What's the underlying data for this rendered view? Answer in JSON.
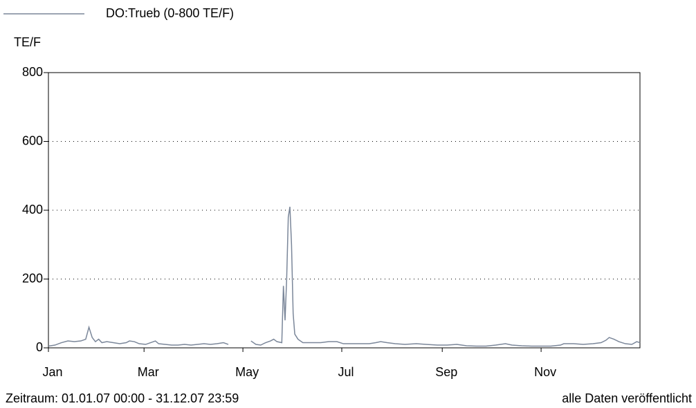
{
  "chart_data": {
    "type": "line",
    "legend_label": "DO:Trueb (0-800 TE/F)",
    "ylabel": "TE/F",
    "footer_left": "Zeitraum: 01.01.07 00:00 - 31.12.07 23:59",
    "footer_right": "alle Daten veröffentlicht",
    "xlim": [
      0,
      365
    ],
    "xticks": [
      {
        "value": 0,
        "label": "Jan"
      },
      {
        "value": 59,
        "label": "Mar"
      },
      {
        "value": 120,
        "label": "May"
      },
      {
        "value": 181,
        "label": "Jul"
      },
      {
        "value": 243,
        "label": "Sep"
      },
      {
        "value": 304,
        "label": "Nov"
      }
    ],
    "ylim": [
      0,
      800
    ],
    "yticks": [
      0,
      200,
      400,
      600,
      800
    ],
    "grid": true,
    "x": [
      0,
      4,
      8,
      12,
      16,
      20,
      23,
      25,
      27,
      29,
      31,
      33,
      36,
      40,
      44,
      48,
      50,
      53,
      56,
      60,
      63,
      66,
      68,
      72,
      76,
      80,
      84,
      88,
      92,
      96,
      100,
      104,
      108,
      111,
      113,
      125,
      128,
      131,
      134,
      137,
      139,
      141,
      144,
      145,
      146,
      147,
      148,
      149,
      150,
      151,
      152,
      154,
      157,
      162,
      168,
      173,
      178,
      182,
      190,
      198,
      202,
      205,
      209,
      214,
      220,
      227,
      233,
      240,
      246,
      252,
      258,
      264,
      270,
      276,
      282,
      286,
      292,
      298,
      304,
      310,
      316,
      318,
      324,
      330,
      336,
      341,
      344,
      346,
      349,
      352,
      356,
      360,
      363,
      365
    ],
    "series": [
      {
        "name": "DO:Trueb (0-800 TE/F)",
        "color": "#7a8699",
        "values": [
          5,
          8,
          15,
          20,
          18,
          20,
          25,
          60,
          30,
          18,
          25,
          15,
          18,
          15,
          12,
          15,
          20,
          18,
          12,
          10,
          15,
          20,
          12,
          10,
          8,
          8,
          10,
          8,
          10,
          12,
          10,
          12,
          15,
          10,
          null,
          20,
          10,
          8,
          15,
          20,
          25,
          18,
          15,
          180,
          80,
          200,
          380,
          410,
          300,
          100,
          40,
          25,
          15,
          15,
          15,
          18,
          18,
          12,
          12,
          12,
          15,
          18,
          15,
          12,
          10,
          12,
          10,
          8,
          8,
          10,
          6,
          5,
          5,
          8,
          12,
          8,
          6,
          5,
          5,
          5,
          8,
          12,
          12,
          10,
          12,
          15,
          22,
          30,
          25,
          18,
          12,
          10,
          18,
          15
        ]
      }
    ]
  }
}
